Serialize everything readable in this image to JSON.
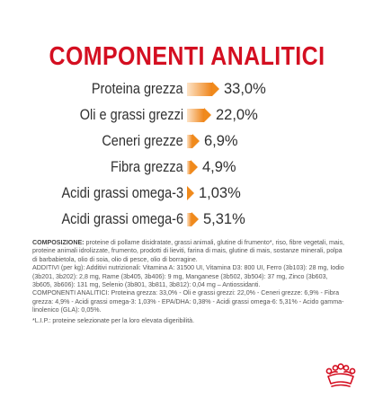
{
  "title": "COMPONENTI ANALITICI",
  "colors": {
    "title": "#d40f21",
    "bar_gradient_start": "#fde4c8",
    "bar_gradient_end": "#ef8418",
    "arrow": "#f08a1c",
    "text": "#303030",
    "brand_red": "#d40f21"
  },
  "nutrients": [
    {
      "label": "Proteina grezza",
      "value": "33,0%",
      "percent": 33.0
    },
    {
      "label": "Oli e grassi grezzi",
      "value": "22,0%",
      "percent": 22.0
    },
    {
      "label": "Ceneri grezze",
      "value": "6,9%",
      "percent": 6.9
    },
    {
      "label": "Fibra grezza",
      "value": "4,9%",
      "percent": 4.9
    },
    {
      "label": "Acidi grassi omega-3",
      "value": "1,03%",
      "percent": 1.03
    },
    {
      "label": "Acidi grassi omega-6",
      "value": "5,31%",
      "percent": 5.31
    }
  ],
  "composition": {
    "lead": "COMPOSIZIONE:",
    "text": "proteine di pollame disidratate, grassi animali, glutine di frumento*, riso, fibre vegetali, mais, proteine animali idrolizzate, frumento, prodotti di lieviti, farina di mais, glutine di mais, sostanze minerali, polpa di barbabietola, olio di soia, olio di pesce, olio di borragine.",
    "additives": "ADDITIVI (per kg): Additivi nutrizionali: Vitamina A: 31500 UI, Vitamina D3: 800 UI, Ferro (3b103): 28 mg, Iodio (3b201, 3b202): 2,8 mg, Rame (3b405, 3b406): 9 mg, Manganese (3b502, 3b504): 37 mg, Zinco (3b603, 3b605, 3b606): 131 mg, Selenio (3b801, 3b811, 3b812): 0,04 mg – Antiossidanti.",
    "analytical": "COMPONENTI ANALITICI: Proteina grezza: 33,0% - Oli e grassi grezzi: 22,0% - Ceneri grezze: 6,9% - Fibra grezza: 4,9% - Acidi grassi omega-3: 1,03% - EPA/DHA: 0,38% - Acidi grassi omega-6: 5,31% - Acido gamma-linolenico (GLA): 0,05%."
  },
  "footnote": "*L.I.P.: proteine selezionate per la loro elevata digeribilità.",
  "logo": {
    "name": "royal-canin-crown-logo"
  }
}
